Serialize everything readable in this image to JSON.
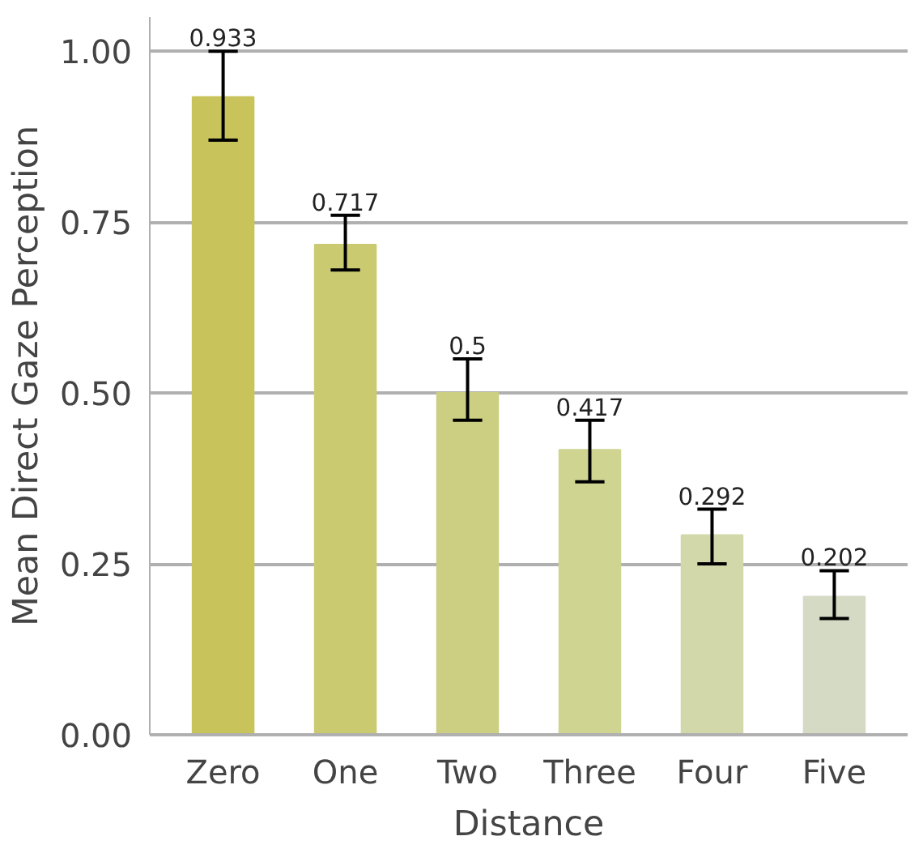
{
  "chart_data": {
    "type": "bar",
    "xlabel": "Distance",
    "ylabel": "Mean Direct Gaze Perception",
    "categories": [
      "Zero",
      "One",
      "Two",
      "Three",
      "Four",
      "Five"
    ],
    "values": [
      0.933,
      0.717,
      0.5,
      0.417,
      0.292,
      0.202
    ],
    "colors": [
      "#c8c35a",
      "#cacb70",
      "#cccf82",
      "#d0d491",
      "#d2d8aa",
      "#d5dac4"
    ],
    "errors": [
      [
        0.87,
        1.0
      ],
      [
        0.68,
        0.76
      ],
      [
        0.46,
        0.55
      ],
      [
        0.37,
        0.46
      ],
      [
        0.25,
        0.33
      ],
      [
        0.17,
        0.24
      ]
    ],
    "data_labels": true,
    "ylim": [
      0,
      1.05
    ],
    "yticks": [
      {
        "value": 0,
        "label": "0.00"
      },
      {
        "value": 0.25,
        "label": "0.25"
      },
      {
        "value": 0.5,
        "label": "0.50"
      },
      {
        "value": 0.75,
        "label": "0.75"
      },
      {
        "value": 1,
        "label": "1.00"
      }
    ],
    "grid": "y"
  }
}
